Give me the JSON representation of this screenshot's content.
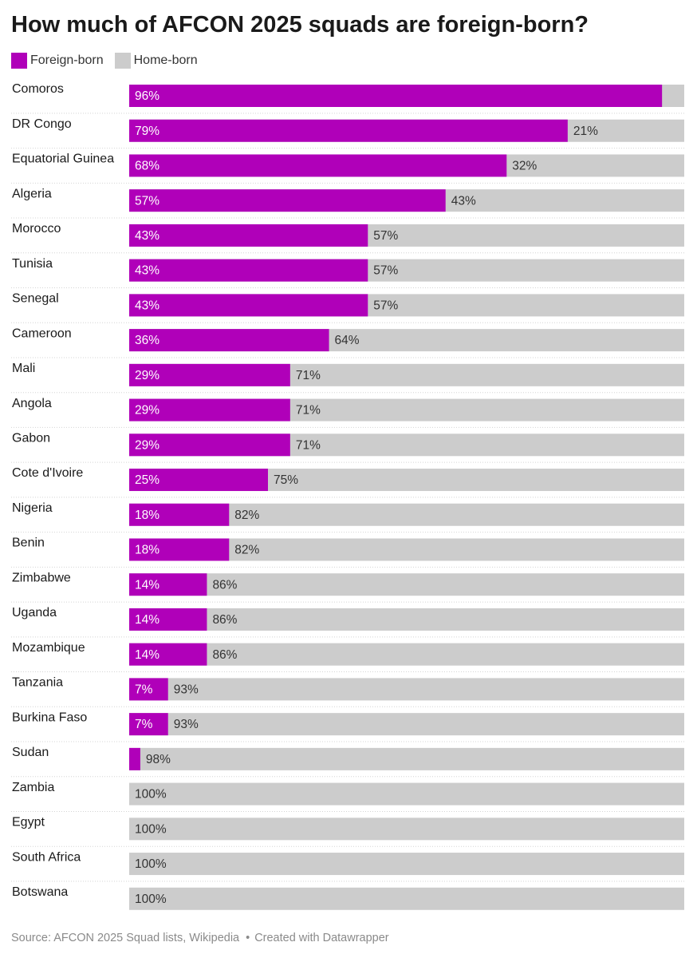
{
  "chart_data": {
    "type": "bar",
    "orientation": "horizontal",
    "stacked": true,
    "title": "How much of AFCON 2025 squads are foreign-born?",
    "categories": [
      "Comoros",
      "DR Congo",
      "Equatorial Guinea",
      "Algeria",
      "Morocco",
      "Tunisia",
      "Senegal",
      "Cameroon",
      "Mali",
      "Angola",
      "Gabon",
      "Cote d'Ivoire",
      "Nigeria",
      "Benin",
      "Zimbabwe",
      "Uganda",
      "Mozambique",
      "Tanzania",
      "Burkina Faso",
      "Sudan",
      "Zambia",
      "Egypt",
      "South Africa",
      "Botswana"
    ],
    "series": [
      {
        "name": "Foreign-born",
        "color": "#b000b9",
        "values": [
          96,
          79,
          68,
          57,
          43,
          43,
          43,
          36,
          29,
          29,
          29,
          25,
          18,
          18,
          14,
          14,
          14,
          7,
          7,
          2,
          0,
          0,
          0,
          0
        ],
        "labels": [
          "96%",
          "79%",
          "68%",
          "57%",
          "43%",
          "43%",
          "43%",
          "36%",
          "29%",
          "29%",
          "29%",
          "25%",
          "18%",
          "18%",
          "14%",
          "14%",
          "14%",
          "7%",
          "7%",
          "",
          "",
          "",
          "",
          ""
        ]
      },
      {
        "name": "Home-born",
        "color": "#cccccc",
        "values": [
          4,
          21,
          32,
          43,
          57,
          57,
          57,
          64,
          71,
          71,
          71,
          75,
          82,
          82,
          86,
          86,
          86,
          93,
          93,
          98,
          100,
          100,
          100,
          100
        ],
        "labels": [
          "",
          "21%",
          "32%",
          "43%",
          "57%",
          "57%",
          "57%",
          "64%",
          "71%",
          "71%",
          "71%",
          "75%",
          "82%",
          "82%",
          "86%",
          "86%",
          "86%",
          "93%",
          "93%",
          "98%",
          "100%",
          "100%",
          "100%",
          "100%"
        ]
      }
    ],
    "xlim": [
      0,
      100
    ],
    "legend_position": "top-left",
    "grid": false
  },
  "footer": {
    "source": "Source: AFCON 2025 Squad lists, Wikipedia",
    "separator": "•",
    "credit": "Created with Datawrapper"
  }
}
